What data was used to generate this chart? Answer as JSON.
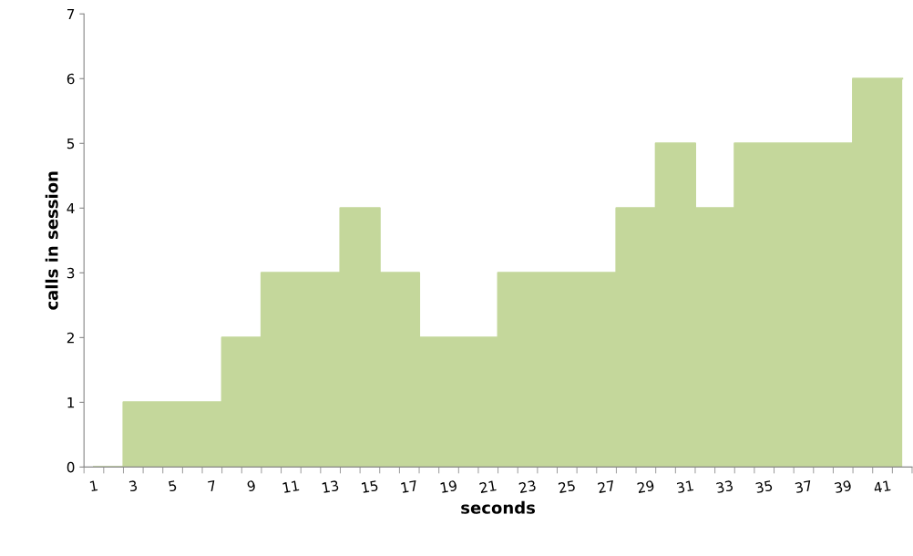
{
  "chart_data": {
    "type": "area",
    "xlabel": "seconds",
    "ylabel": "calls in session",
    "categories": [
      "1",
      null,
      "3",
      null,
      "5",
      null,
      "7",
      null,
      "9",
      null,
      "11",
      null,
      "13",
      null,
      "15",
      null,
      "17",
      null,
      "19",
      null,
      "21",
      null,
      "23",
      null,
      "25",
      null,
      "27",
      null,
      "29",
      null,
      "31",
      null,
      "33",
      null,
      "35",
      null,
      "37",
      null,
      "39",
      null,
      "41",
      null
    ],
    "values": [
      0,
      0,
      1,
      1,
      1,
      1,
      1,
      2,
      2,
      3,
      3,
      3,
      3,
      4,
      4,
      3,
      3,
      2,
      2,
      2,
      2,
      3,
      3,
      3,
      3,
      3,
      3,
      4,
      4,
      5,
      5,
      4,
      4,
      5,
      5,
      5,
      5,
      5,
      5,
      6,
      6,
      6
    ],
    "color": "#c4d79b",
    "ylim": [
      0,
      7
    ],
    "yticks": [
      0,
      1,
      2,
      3,
      4,
      5,
      6,
      7
    ],
    "grid": false,
    "legend": false
  }
}
